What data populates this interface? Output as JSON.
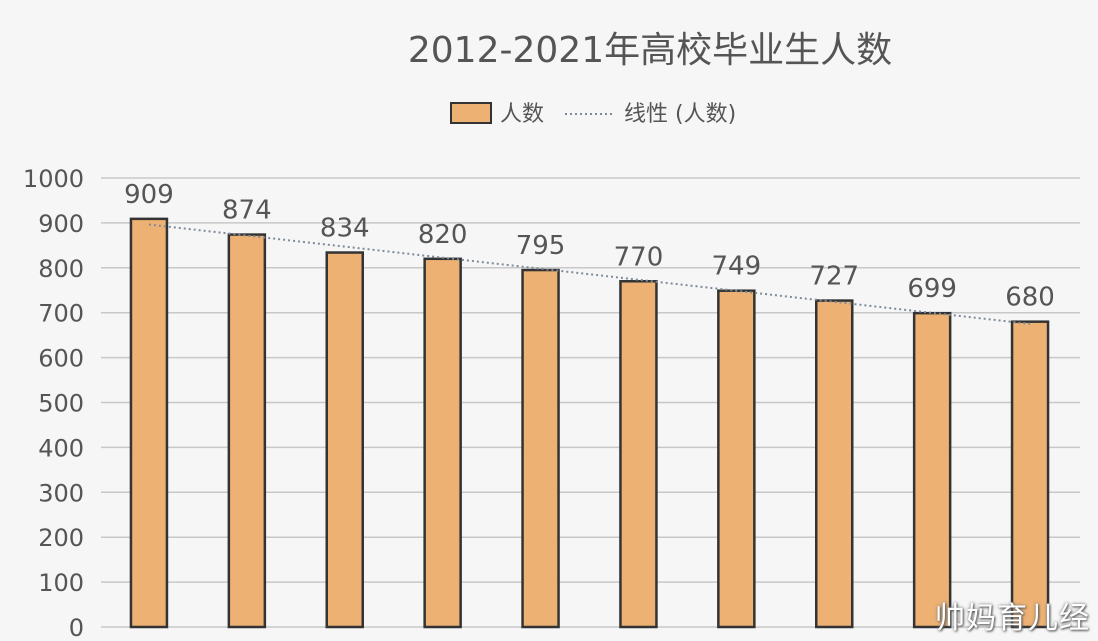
{
  "chart_data": {
    "type": "bar",
    "title": "2012-2021年高校毕业生人数",
    "categories": [
      "",
      "",
      "",
      "",
      "",
      "",
      "",
      "",
      "",
      ""
    ],
    "series": [
      {
        "name": "人数",
        "values": [
          909,
          874,
          834,
          820,
          795,
          770,
          749,
          727,
          699,
          680
        ]
      }
    ],
    "trendline": {
      "type": "linear",
      "name": "线性 (人数)"
    },
    "ylim": [
      0,
      1000
    ],
    "yticks": [
      0,
      100,
      200,
      300,
      400,
      500,
      600,
      700,
      800,
      900,
      1000
    ],
    "grid": true,
    "legend": "top",
    "data_labels": true,
    "colors": {
      "bar": "#EDB173",
      "bar_border": "#333333",
      "trend": "#7f8a99",
      "grid": "#c8c8c8",
      "text": "#555555"
    }
  },
  "watermark": "帅妈育儿经"
}
